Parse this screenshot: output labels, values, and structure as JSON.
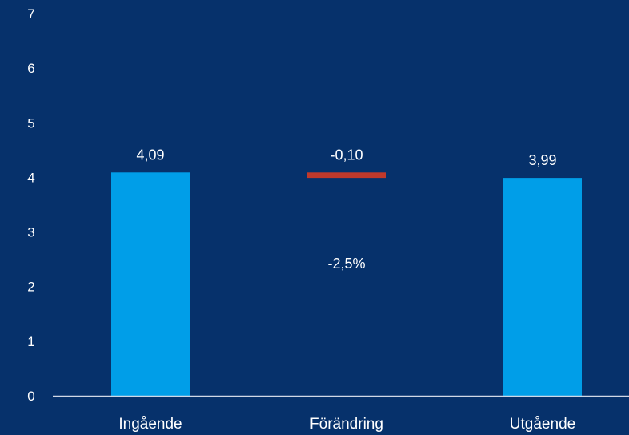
{
  "colors": {
    "background": "#06316b",
    "bar": "#009ee8",
    "decrease": "#c0392b",
    "text": "#ffffff",
    "axis": "#d0d8e6"
  },
  "chart_data": {
    "type": "bar",
    "subtype": "waterfall",
    "categories": [
      "Ingående",
      "Förändring",
      "Utgående"
    ],
    "values": [
      4.09,
      -0.1,
      3.99
    ],
    "value_labels": [
      "4,09",
      "-0,10",
      "3,99"
    ],
    "annotations": [
      {
        "category": "Förändring",
        "text": "-2,5%"
      }
    ],
    "yticks": [
      "0",
      "1",
      "2",
      "3",
      "4",
      "5",
      "6",
      "7"
    ],
    "ylim": [
      0,
      7
    ],
    "grid": false,
    "legend": "none",
    "title": "",
    "xlabel": "",
    "ylabel": ""
  }
}
